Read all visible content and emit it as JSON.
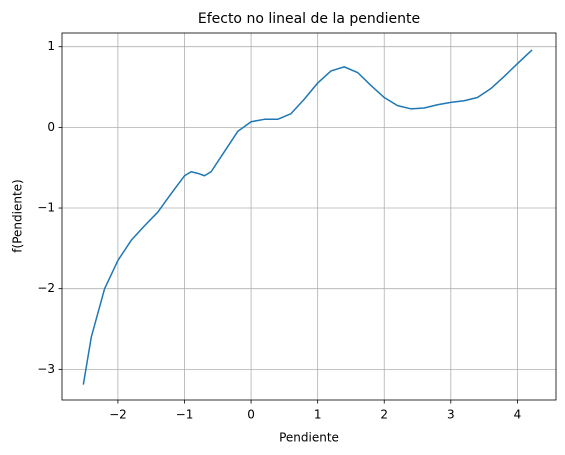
{
  "chart_data": {
    "type": "line",
    "title": "Efecto no lineal de la pendiente",
    "xlabel": "Pendiente",
    "ylabel": "f(Pendiente)",
    "x": [
      -2.52,
      -2.4,
      -2.2,
      -2.0,
      -1.8,
      -1.6,
      -1.4,
      -1.2,
      -1.0,
      -0.9,
      -0.8,
      -0.7,
      -0.6,
      -0.4,
      -0.2,
      0,
      0.2,
      0.4,
      0.6,
      0.8,
      1.0,
      1.2,
      1.4,
      1.6,
      1.8,
      2.0,
      2.2,
      2.4,
      2.6,
      2.8,
      3.0,
      3.2,
      3.4,
      3.6,
      3.8,
      4.0,
      4.22
    ],
    "series": [
      {
        "name": "f(Pendiente)",
        "color": "#1f77b4",
        "values": [
          -3.19,
          -2.6,
          -2.0,
          -1.65,
          -1.4,
          -1.22,
          -1.05,
          -0.82,
          -0.6,
          -0.55,
          -0.57,
          -0.6,
          -0.55,
          -0.3,
          -0.05,
          0.07,
          0.1,
          0.1,
          0.17,
          0.35,
          0.55,
          0.7,
          0.75,
          0.68,
          0.52,
          0.37,
          0.27,
          0.23,
          0.24,
          0.28,
          0.31,
          0.33,
          0.37,
          0.48,
          0.63,
          0.79,
          0.96
        ]
      }
    ],
    "xlim": [
      -2.84,
      4.58
    ],
    "ylim": [
      -3.38,
      1.17
    ],
    "xticks": [
      {
        "value": -2,
        "label": "−2"
      },
      {
        "value": -1,
        "label": "−1"
      },
      0,
      1,
      2,
      3,
      4
    ],
    "yticks": [
      {
        "value": -3,
        "label": "−3"
      },
      {
        "value": -2,
        "label": "−2"
      },
      {
        "value": -1,
        "label": "−1"
      },
      0,
      1
    ],
    "grid": true
  }
}
